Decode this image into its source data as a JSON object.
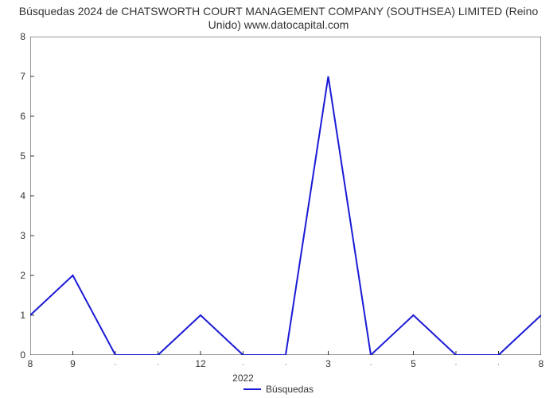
{
  "title_line1": "Búsquedas 2024 de CHATSWORTH COURT MANAGEMENT COMPANY (SOUTHSEA) LIMITED (Reino",
  "title_line2": "Unido) www.datocapital.com",
  "chart": {
    "type": "line",
    "series_label": "Búsquedas",
    "series_color": "#1a1ad6",
    "line_width": 2,
    "background_color": "#ffffff",
    "axis_color": "#333333",
    "tick_color": "#333333",
    "tick_font_size": 12,
    "title_font_size": 14,
    "ylim": [
      0,
      8
    ],
    "yticks": [
      0,
      1,
      2,
      3,
      4,
      5,
      6,
      7,
      8
    ],
    "x_points": [
      0,
      1,
      2,
      3,
      4,
      5,
      6,
      7,
      8,
      9,
      10,
      11,
      12
    ],
    "y_values": [
      1,
      2,
      0,
      0,
      1,
      0,
      0,
      7,
      0,
      1,
      0,
      0,
      1
    ],
    "x_tick_labels": [
      "8",
      "9",
      "",
      "",
      "12",
      "",
      "",
      "3",
      "",
      "5",
      "",
      "",
      "8"
    ],
    "x_group_label": "2022",
    "x_group_center_index": 5,
    "minor_tick_length": 5,
    "major_tick_length": 5
  }
}
